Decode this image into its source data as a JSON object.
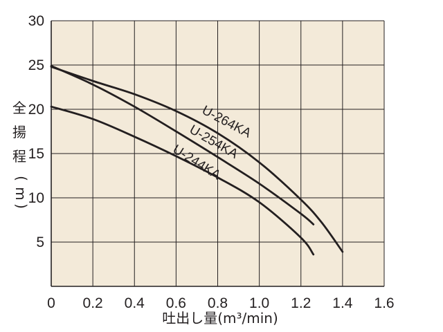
{
  "chart_data": {
    "type": "line",
    "xlabel": "吐出し量(m³/min)",
    "ylabel": "全揚程(m)",
    "xlim": [
      0,
      1.6
    ],
    "ylim": [
      0,
      30
    ],
    "x_ticks": [
      "0",
      "0.2",
      "0.4",
      "0.6",
      "0.8",
      "1.0",
      "1.2",
      "1.4",
      "1.6"
    ],
    "y_ticks": [
      "5",
      "10",
      "15",
      "20",
      "25",
      "30"
    ],
    "grid": true,
    "legend": "none",
    "colors": {
      "background": "#f3ead9",
      "grid": "#231f20",
      "line": "#231f20"
    },
    "series": [
      {
        "name": "U-264KA",
        "x": [
          0,
          0.2,
          0.4,
          0.6,
          0.8,
          1.0,
          1.2,
          1.3,
          1.4
        ],
        "y": [
          24.8,
          23.2,
          21.7,
          19.8,
          17.3,
          14.0,
          9.8,
          7.2,
          3.9
        ]
      },
      {
        "name": "U-254KA",
        "x": [
          0,
          0.2,
          0.4,
          0.6,
          0.8,
          1.0,
          1.2,
          1.26
        ],
        "y": [
          24.9,
          22.8,
          20.3,
          17.5,
          14.6,
          11.6,
          8.2,
          7.0
        ]
      },
      {
        "name": "U-244KA",
        "x": [
          0,
          0.2,
          0.4,
          0.6,
          0.8,
          1.0,
          1.2,
          1.26
        ],
        "y": [
          20.3,
          18.9,
          16.9,
          14.7,
          12.3,
          9.5,
          5.5,
          3.6
        ]
      }
    ]
  }
}
